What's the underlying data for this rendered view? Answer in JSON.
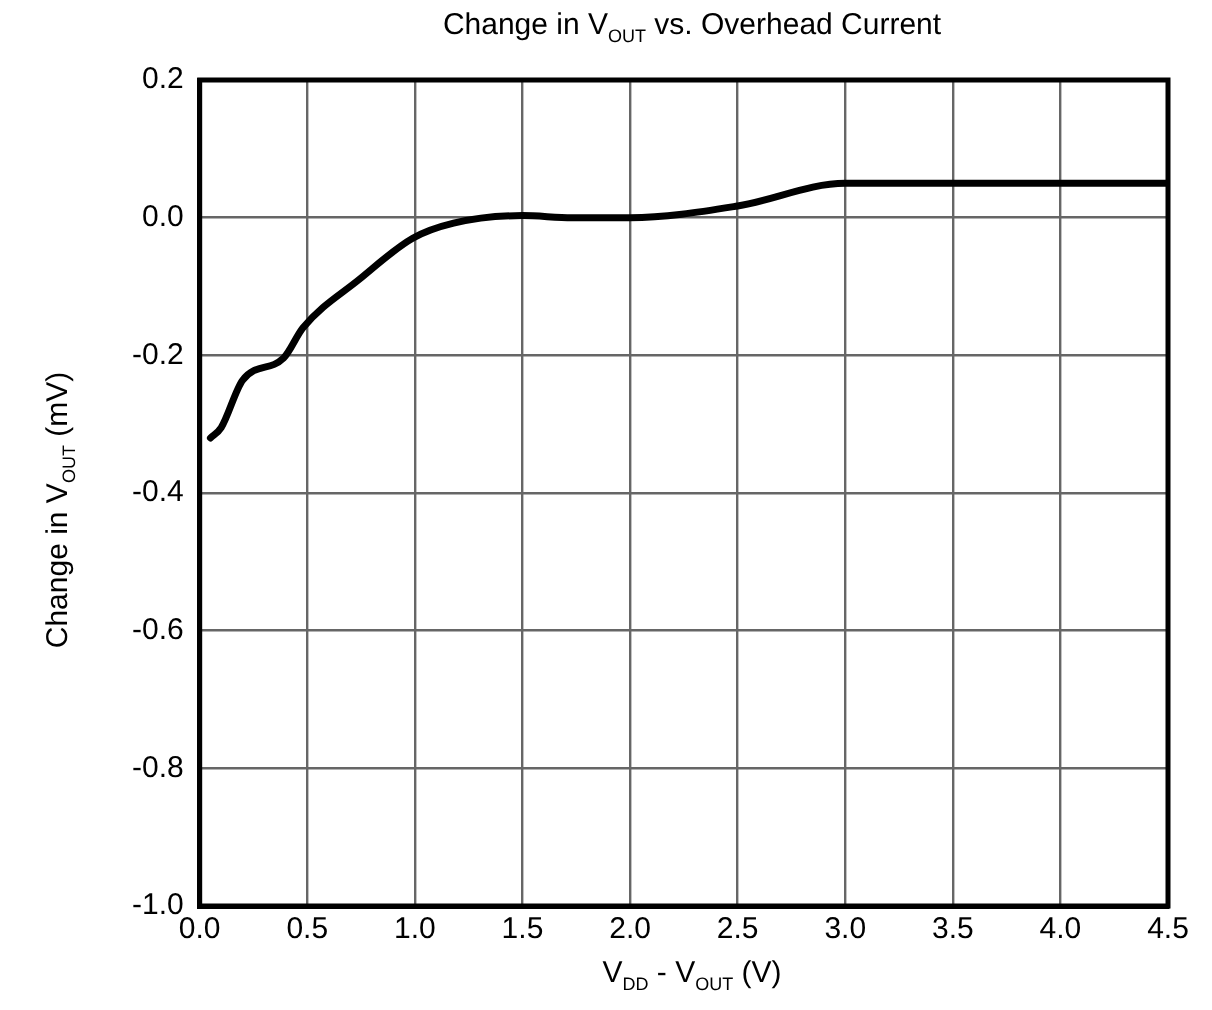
{
  "chart_data": {
    "type": "line",
    "title": "Change in V$_{OUT}$ vs. Overhead Current",
    "xlabel": "V$_{DD}$ - V$_{OUT}$ (V)",
    "ylabel": "Change in V$_{OUT}$ (mV)",
    "x": [
      0.05,
      0.1,
      0.2,
      0.39,
      0.48,
      0.74,
      0.99,
      1.18,
      1.5,
      1.73,
      2.0,
      2.5,
      3.0,
      3.25,
      4.5
    ],
    "series": [
      {
        "color": "#000000",
        "values": [
          -0.32,
          -0.305,
          -0.236,
          -0.204,
          -0.16,
          -0.09,
          -0.03,
          -0.008,
          0.003,
          0.0,
          0.0,
          0.017,
          0.05,
          0.05,
          0.05
        ]
      }
    ],
    "xlim": [
      0,
      4.5
    ],
    "xticks": [
      {
        "value": 0,
        "label": "0.0"
      },
      0.5,
      {
        "value": 1,
        "label": "1.0"
      },
      1.5,
      {
        "value": 2,
        "label": "2.0"
      },
      2.5,
      {
        "value": 3,
        "label": "3.0"
      },
      3.5,
      {
        "value": 4,
        "label": "4.0"
      },
      4.5
    ],
    "ylim": [
      -1,
      0.2
    ],
    "yticks": [
      {
        "value": -1,
        "label": "-1.0"
      },
      -0.8,
      -0.6,
      -0.4,
      -0.2,
      {
        "value": 0,
        "label": "0.0"
      },
      0.2
    ],
    "grid": true,
    "legend": false,
    "marker": "none",
    "line_style": "solid"
  }
}
